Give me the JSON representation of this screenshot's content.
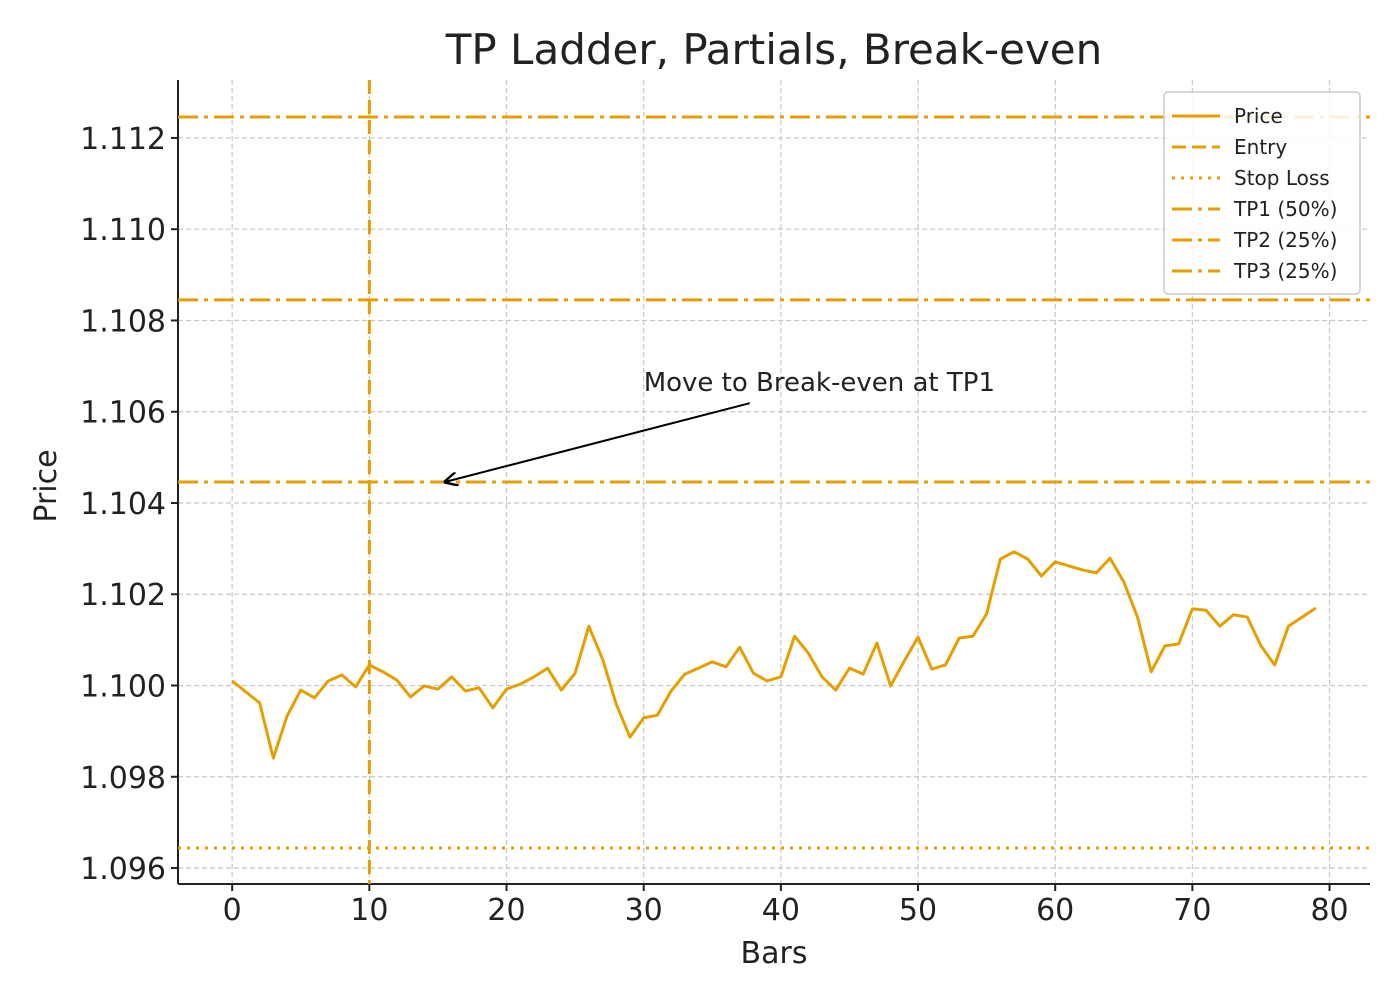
{
  "chart_data": {
    "type": "line",
    "title": "TP Ladder, Partials, Break-even",
    "x_label": "Bars",
    "y_label": "Price",
    "x": [
      0,
      1,
      2,
      3,
      4,
      5,
      6,
      7,
      8,
      9,
      10,
      11,
      12,
      13,
      14,
      15,
      16,
      17,
      18,
      19,
      20,
      21,
      22,
      23,
      24,
      25,
      26,
      27,
      28,
      29,
      30,
      31,
      32,
      33,
      34,
      35,
      36,
      37,
      38,
      39,
      40,
      41,
      42,
      43,
      44,
      45,
      46,
      47,
      48,
      49,
      50,
      51,
      52,
      53,
      54,
      55,
      56,
      57,
      58,
      59,
      60,
      61,
      62,
      63,
      64,
      65,
      66,
      67,
      68,
      69,
      70,
      71,
      72,
      73,
      74,
      75,
      76,
      77,
      78,
      79
    ],
    "series": [
      {
        "name": "Price",
        "color": "#e69f00",
        "values": [
          1.1001,
          1.09986,
          1.09962,
          1.09841,
          1.09933,
          1.0999,
          1.09973,
          1.1001,
          1.10023,
          1.09997,
          1.10045,
          1.1003,
          1.10012,
          1.09975,
          1.09999,
          1.09992,
          1.10019,
          1.09988,
          1.09995,
          1.09951,
          1.09992,
          1.10003,
          1.10019,
          1.10038,
          1.0999,
          1.10027,
          1.1013,
          1.10058,
          1.09959,
          1.09887,
          1.09929,
          1.09935,
          1.09988,
          1.10025,
          1.10038,
          1.10052,
          1.10041,
          1.10084,
          1.10027,
          1.1001,
          1.10019,
          1.10108,
          1.10071,
          1.10019,
          1.0999,
          1.10038,
          1.10025,
          1.10093,
          1.09999,
          1.10054,
          1.10106,
          1.10036,
          1.10045,
          1.10104,
          1.10108,
          1.10157,
          1.10277,
          1.10293,
          1.10277,
          1.1024,
          1.10271,
          1.10262,
          1.10253,
          1.10247,
          1.10279,
          1.10227,
          1.1015,
          1.1003,
          1.10087,
          1.10091,
          1.10168,
          1.10165,
          1.1013,
          1.10155,
          1.1015,
          1.10087,
          1.10045,
          1.1013,
          1.1015,
          1.1017
        ]
      }
    ],
    "levels": [
      {
        "name": "Entry",
        "orientation": "vertical",
        "value": 10,
        "style": "dashed",
        "color": "#e69f00"
      },
      {
        "name": "Stop Loss",
        "orientation": "horizontal",
        "value": 1.09644,
        "style": "dotted",
        "color": "#e69f00"
      },
      {
        "name": "TP1 (50%)",
        "orientation": "horizontal",
        "value": 1.10446,
        "style": "dashdot",
        "color": "#e69f00"
      },
      {
        "name": "TP2 (25%)",
        "orientation": "horizontal",
        "value": 1.10845,
        "style": "dashdot",
        "color": "#e69f00"
      },
      {
        "name": "TP3 (25%)",
        "orientation": "horizontal",
        "value": 1.11246,
        "style": "dashdot",
        "color": "#e69f00"
      }
    ],
    "annotation": {
      "text": "Move to Break-even at TP1",
      "xy": [
        15.5,
        1.10446
      ],
      "xytext": [
        30,
        1.10667
      ]
    },
    "xlim": [
      -3.95,
      82.95
    ],
    "ylim": [
      1.09565,
      1.11327
    ],
    "xticks": [
      0,
      10,
      20,
      30,
      40,
      50,
      60,
      70,
      80
    ],
    "yticks": [
      1.096,
      1.098,
      {
        "value": 1.1,
        "label": "1.100"
      },
      1.102,
      1.104,
      1.106,
      1.108,
      {
        "value": 1.11,
        "label": "1.110"
      },
      1.112
    ],
    "grid": true,
    "legend": "upper right"
  }
}
